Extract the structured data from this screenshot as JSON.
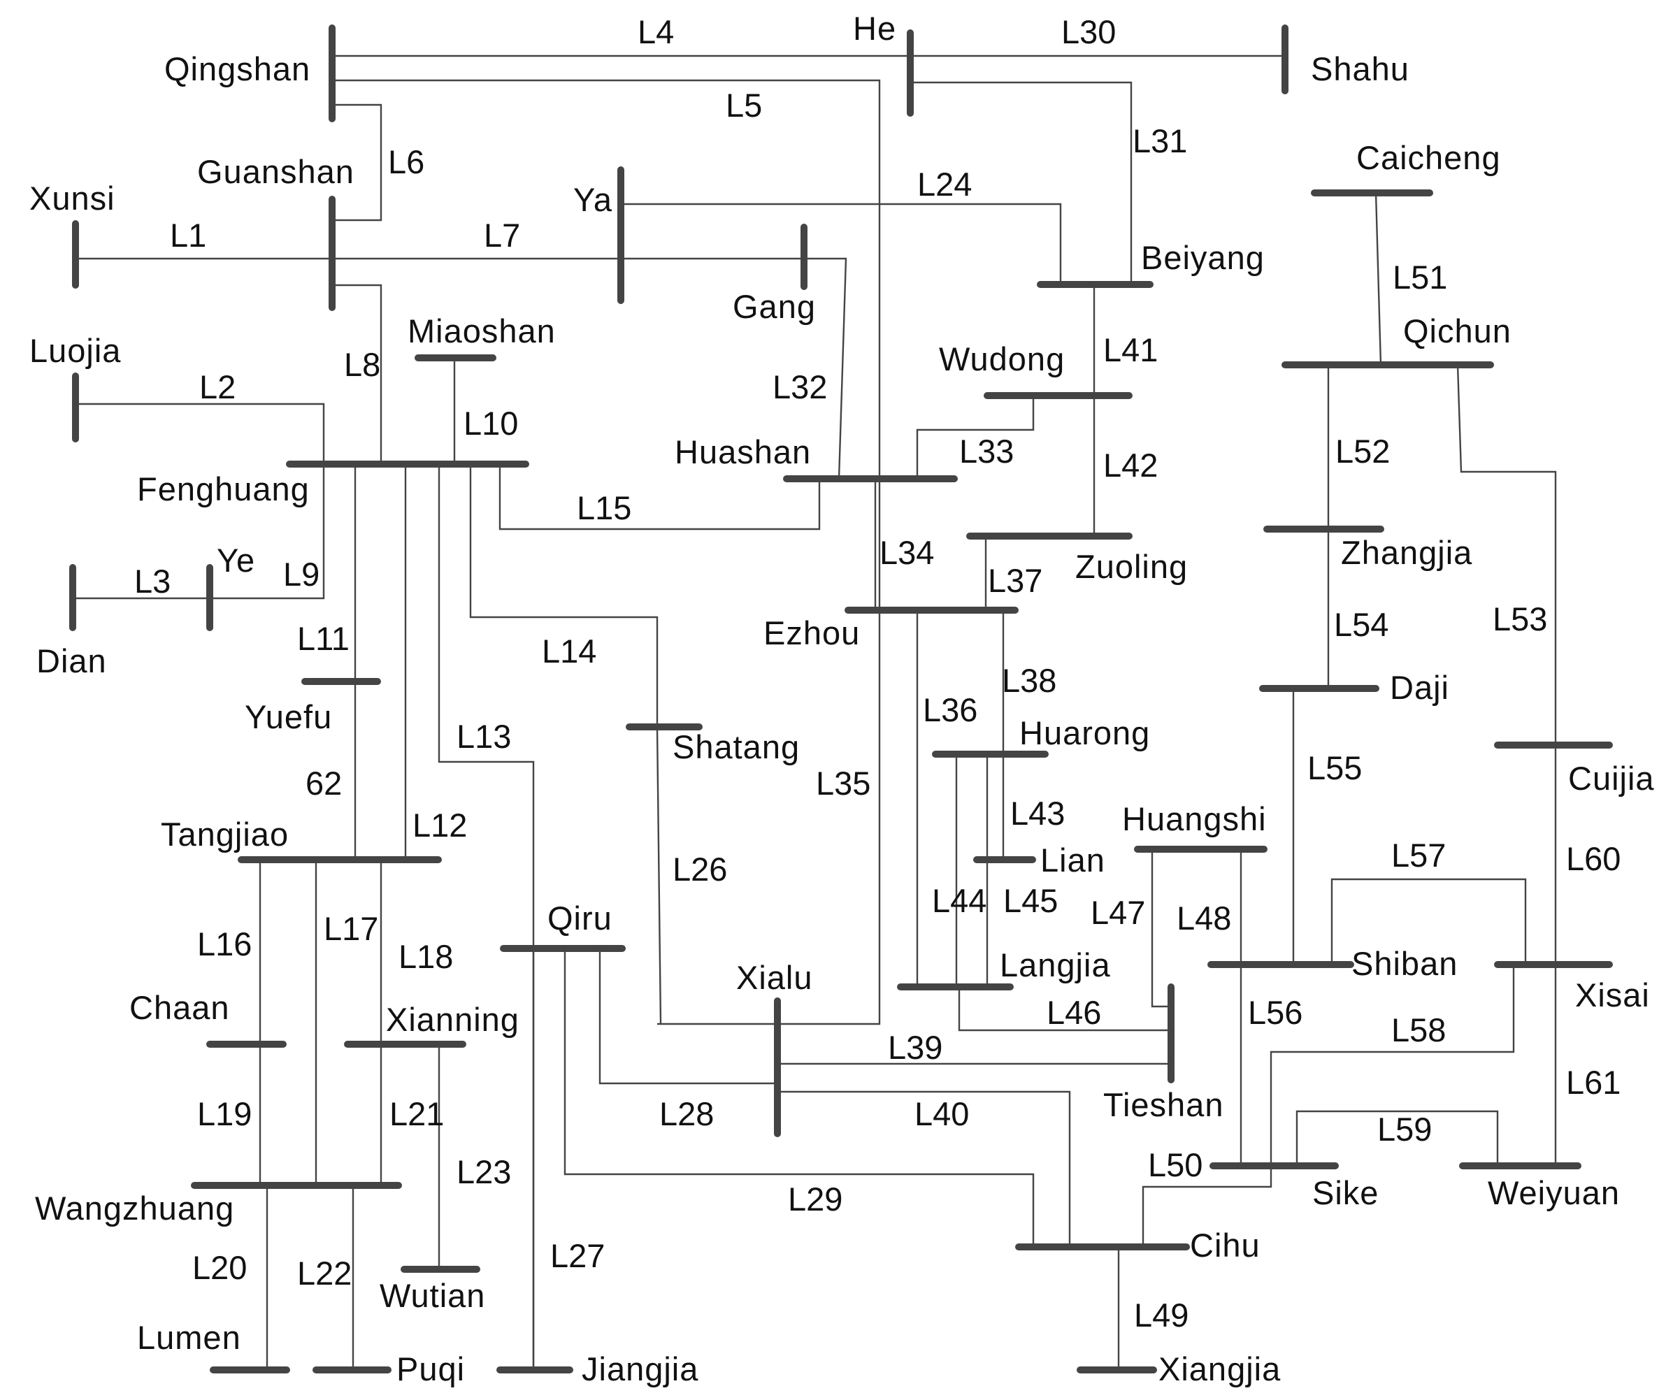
{
  "buses": {
    "qingshan": "Qingshan",
    "he": "He",
    "shahu": "Shahu",
    "guanshan": "Guanshan",
    "xunsi": "Xunsi",
    "ya": "Ya",
    "gang": "Gang",
    "caicheng": "Caicheng",
    "beiyang": "Beiyang",
    "luojia": "Luojia",
    "miaoshan": "Miaoshan",
    "qichun": "Qichun",
    "wudong": "Wudong",
    "huashan": "Huashan",
    "fenghuang": "Fenghuang",
    "zhangjia": "Zhangjia",
    "zuoling": "Zuoling",
    "ye": "Ye",
    "dian": "Dian",
    "ezhou": "Ezhou",
    "daji": "Daji",
    "yuefu": "Yuefu",
    "shatang": "Shatang",
    "huarong": "Huarong",
    "cuijia": "Cuijia",
    "tangjiao": "Tangjiao",
    "huangshi": "Huangshi",
    "lian": "Lian",
    "qiru": "Qiru",
    "langjia": "Langjia",
    "shiban": "Shiban",
    "xisai": "Xisai",
    "chaan": "Chaan",
    "xialu": "Xialu",
    "xianning": "Xianning",
    "tieshan": "Tieshan",
    "sike": "Sike",
    "weiyuan": "Weiyuan",
    "wangzhuang": "Wangzhuang",
    "cihu": "Cihu",
    "wutian": "Wutian",
    "lumen": "Lumen",
    "puqi": "Puqi",
    "jiangjia": "Jiangjia",
    "xiangjia": "Xiangjia"
  },
  "lines": {
    "l1": "L1",
    "l2": "L2",
    "l3": "L3",
    "l4": "L4",
    "l5": "L5",
    "l6": "L6",
    "l7": "L7",
    "l8": "L8",
    "l9": "L9",
    "l10": "L10",
    "l11": "L11",
    "l12": "L12",
    "l13": "L13",
    "l14": "L14",
    "l15": "L15",
    "l16": "L16",
    "l17": "L17",
    "l18": "L18",
    "l19": "L19",
    "l20": "L20",
    "l21": "L21",
    "l22": "L22",
    "l23": "L23",
    "l24": "L24",
    "l26": "L26",
    "l27": "L27",
    "l28": "L28",
    "l29": "L29",
    "l30": "L30",
    "l31": "L31",
    "l32": "L32",
    "l33": "L33",
    "l34": "L34",
    "l35": "L35",
    "l36": "L36",
    "l37": "L37",
    "l38": "L38",
    "l39": "L39",
    "l40": "L40",
    "l41": "L41",
    "l42": "L42",
    "l43": "L43",
    "l44": "L44",
    "l45": "L45",
    "l46": "L46",
    "l47": "L47",
    "l48": "L48",
    "l49": "L49",
    "l50": "L50",
    "l51": "L51",
    "l52": "L52",
    "l53": "L53",
    "l54": "L54",
    "l55": "L55",
    "l56": "L56",
    "l57": "L57",
    "l58": "L58",
    "l59": "L59",
    "l60": "L60",
    "l61": "L61",
    "l62": "62"
  }
}
